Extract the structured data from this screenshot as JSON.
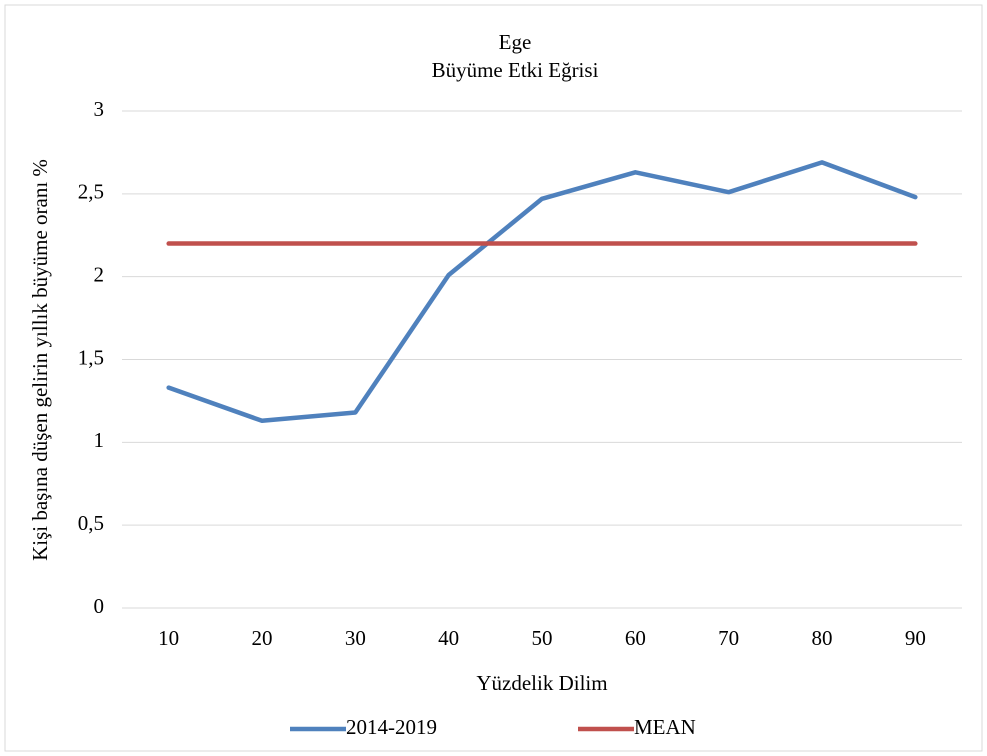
{
  "chart_data": {
    "type": "line",
    "title": [
      "Ege",
      "Büyüme Etki Eğrisi"
    ],
    "x_label": "Yüzdelik Dilim",
    "y_label": "Kişi başına düşen gelirin yıllık büyüme oranı %",
    "categories": [
      "10",
      "20",
      "30",
      "40",
      "50",
      "60",
      "70",
      "80",
      "90"
    ],
    "series": [
      {
        "name": "2014-2019",
        "color": "#4f81bd",
        "values": [
          1.33,
          1.13,
          1.18,
          2.01,
          2.47,
          2.63,
          2.51,
          2.69,
          2.48
        ]
      },
      {
        "name": "MEAN",
        "color": "#c0504d",
        "values": [
          2.2,
          2.2,
          2.2,
          2.2,
          2.2,
          2.2,
          2.2,
          2.2,
          2.2
        ]
      }
    ],
    "ylim": [
      0,
      3
    ],
    "yticks": [
      0,
      {
        "value": 0.5,
        "label": "0,5"
      },
      1,
      {
        "value": 1.5,
        "label": "1,5"
      },
      2,
      {
        "value": 2.5,
        "label": "2,5"
      },
      3
    ],
    "grid": true,
    "legend": "bottom"
  }
}
